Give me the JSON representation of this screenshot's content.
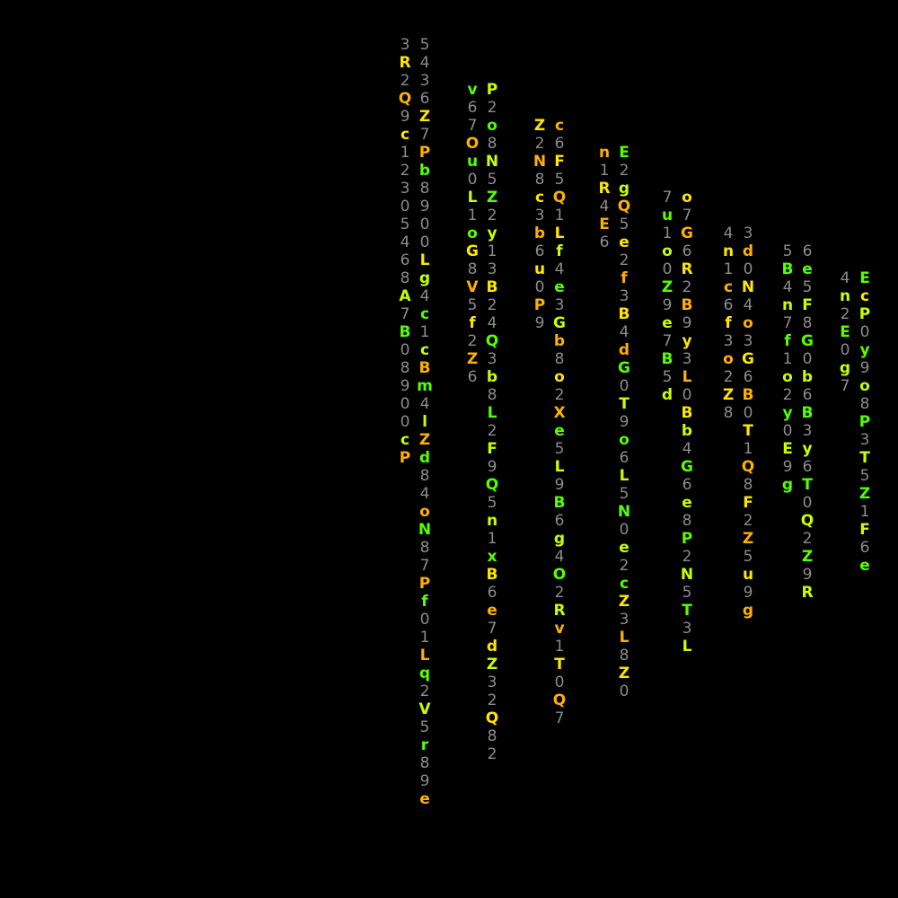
{
  "colors": {
    "background": "#000000",
    "digit": "#8c8c8c",
    "letter_yellow": "#ffe600",
    "letter_orange": "#ffb000",
    "letter_lime": "#c8ff00",
    "letter_green": "#55ff00"
  },
  "rings": [
    {
      "text": "5436Z7Pb8900Lg4c1cBm4lZd84oN87Pf01Lq2V5r89e3R2Q9c12305468A7B08900cP"
    },
    {
      "text": "P2o8N5Z2y13B24Q3b8L2F9Q5n1xB6e7dZ32Q82v67Ou0L1oG8V5f2Z6"
    },
    {
      "text": "c6F5Q1Lf4e3Gb8o2Xe5L9B6g4O2Rv1T0Q7Z2N8c3b6u0P9"
    },
    {
      "text": "E2gQ5e2f3B4dG0T9o6L5N0e2cZ3L8Z0n1R4E6"
    },
    {
      "text": "o7G6R2B9y3L0Bb4G6e8P2N5T3L7u1o0Z9e7B5d"
    },
    {
      "text": "3d0N4o3G6B0T1Q8F2Z5u9g4n1c6f3o2Z8"
    },
    {
      "text": "6e5F8G0b6B3y6T0Q2Z9R5B4n7f1o2y0E9g"
    },
    {
      "text": "EcP0y9o8P3T5Z1F6e4n2E0g7"
    }
  ]
}
